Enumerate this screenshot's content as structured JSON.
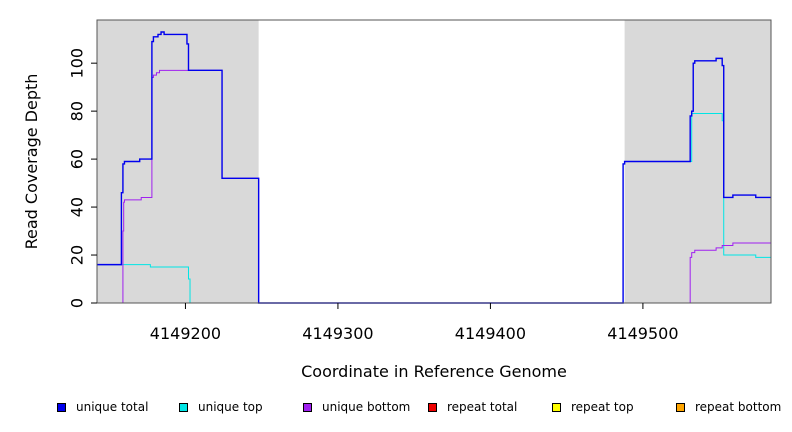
{
  "chart_data": {
    "type": "line",
    "title": "",
    "xlabel": "Coordinate in Reference Genome",
    "ylabel": "Read Coverage Depth",
    "xlim": [
      4149142,
      4149584
    ],
    "ylim": [
      0,
      118
    ],
    "x_ticks": [
      4149200,
      4149300,
      4149400,
      4149500
    ],
    "y_ticks": [
      0,
      20,
      40,
      60,
      80,
      100
    ],
    "grid": false,
    "legend_position": "bottom",
    "shaded_regions": [
      {
        "x_start": 4149142,
        "x_end": 4149248,
        "color": "#d9d9d9"
      },
      {
        "x_start": 4149488,
        "x_end": 4149584,
        "color": "#d9d9d9"
      }
    ],
    "series": [
      {
        "name": "unique total",
        "color": "#0000ee",
        "points": [
          [
            4149142,
            16
          ],
          [
            4149158,
            16
          ],
          [
            4149158,
            46
          ],
          [
            4149159,
            46
          ],
          [
            4149159,
            58
          ],
          [
            4149160,
            58
          ],
          [
            4149160,
            59
          ],
          [
            4149170,
            59
          ],
          [
            4149170,
            60
          ],
          [
            4149178,
            60
          ],
          [
            4149178,
            109
          ],
          [
            4149179,
            109
          ],
          [
            4149179,
            111
          ],
          [
            4149182,
            111
          ],
          [
            4149182,
            112
          ],
          [
            4149184,
            112
          ],
          [
            4149184,
            113
          ],
          [
            4149186,
            113
          ],
          [
            4149186,
            112
          ],
          [
            4149201,
            112
          ],
          [
            4149201,
            108
          ],
          [
            4149202,
            108
          ],
          [
            4149202,
            97
          ],
          [
            4149224,
            97
          ],
          [
            4149224,
            52
          ],
          [
            4149248,
            52
          ],
          [
            4149248,
            0
          ],
          [
            4149487,
            0
          ],
          [
            4149487,
            58
          ],
          [
            4149488,
            58
          ],
          [
            4149488,
            59
          ],
          [
            4149531,
            59
          ],
          [
            4149531,
            78
          ],
          [
            4149532,
            78
          ],
          [
            4149532,
            80
          ],
          [
            4149533,
            80
          ],
          [
            4149533,
            100
          ],
          [
            4149534,
            100
          ],
          [
            4149534,
            101
          ],
          [
            4149548,
            101
          ],
          [
            4149548,
            102
          ],
          [
            4149552,
            102
          ],
          [
            4149552,
            99
          ],
          [
            4149553,
            99
          ],
          [
            4149553,
            44
          ],
          [
            4149559,
            44
          ],
          [
            4149559,
            45
          ],
          [
            4149574,
            45
          ],
          [
            4149574,
            44
          ],
          [
            4149584,
            44
          ]
        ]
      },
      {
        "name": "unique top",
        "color": "#00e5e5",
        "points": [
          [
            4149142,
            16
          ],
          [
            4149177,
            16
          ],
          [
            4149177,
            15
          ],
          [
            4149202,
            15
          ],
          [
            4149202,
            10
          ],
          [
            4149203,
            10
          ],
          [
            4149203,
            0
          ],
          [
            4149487,
            0
          ],
          [
            4149487,
            58
          ],
          [
            4149488,
            58
          ],
          [
            4149488,
            59
          ],
          [
            4149532,
            59
          ],
          [
            4149532,
            79
          ],
          [
            4149552,
            79
          ],
          [
            4149552,
            76
          ],
          [
            4149553,
            76
          ],
          [
            4149553,
            20
          ],
          [
            4149574,
            20
          ],
          [
            4149574,
            19
          ],
          [
            4149584,
            19
          ]
        ]
      },
      {
        "name": "unique bottom",
        "color": "#a020f0",
        "points": [
          [
            4149142,
            0
          ],
          [
            4149159,
            0
          ],
          [
            4149159,
            30
          ],
          [
            4149159.5,
            30
          ],
          [
            4149159.5,
            42
          ],
          [
            4149160,
            42
          ],
          [
            4149160,
            43
          ],
          [
            4149171,
            43
          ],
          [
            4149171,
            44
          ],
          [
            4149178,
            44
          ],
          [
            4149178,
            94
          ],
          [
            4149179,
            94
          ],
          [
            4149179,
            95
          ],
          [
            4149181,
            95
          ],
          [
            4149181,
            96
          ],
          [
            4149183,
            96
          ],
          [
            4149183,
            97
          ],
          [
            4149224,
            97
          ],
          [
            4149224,
            52
          ],
          [
            4149248,
            52
          ],
          [
            4149248,
            0
          ],
          [
            4149531,
            0
          ],
          [
            4149531,
            19
          ],
          [
            4149532,
            19
          ],
          [
            4149532,
            21
          ],
          [
            4149534,
            21
          ],
          [
            4149534,
            22
          ],
          [
            4149548,
            22
          ],
          [
            4149548,
            23
          ],
          [
            4149552,
            23
          ],
          [
            4149552,
            24
          ],
          [
            4149559,
            24
          ],
          [
            4149559,
            25
          ],
          [
            4149584,
            25
          ]
        ]
      },
      {
        "name": "repeat total",
        "color": "#ee0000",
        "points": [
          [
            4149142,
            0
          ],
          [
            4149584,
            0
          ]
        ]
      },
      {
        "name": "repeat top",
        "color": "#ffff00",
        "points": [
          [
            4149142,
            0
          ],
          [
            4149584,
            0
          ]
        ]
      },
      {
        "name": "repeat bottom",
        "color": "#ffa500",
        "points": [
          [
            4149142,
            0
          ],
          [
            4149584,
            0
          ]
        ]
      }
    ]
  },
  "legend": [
    {
      "label": "unique total",
      "color": "#0000ee"
    },
    {
      "label": "unique top",
      "color": "#00e5e5"
    },
    {
      "label": "unique bottom",
      "color": "#a020f0"
    },
    {
      "label": "repeat total",
      "color": "#ee0000"
    },
    {
      "label": "repeat top",
      "color": "#ffff00"
    },
    {
      "label": "repeat bottom",
      "color": "#ffa500"
    }
  ]
}
